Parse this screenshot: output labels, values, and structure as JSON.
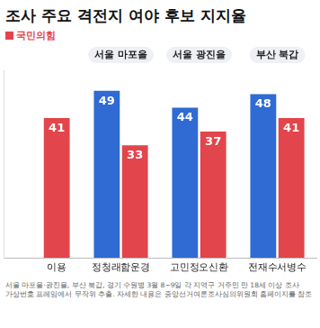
{
  "chart_data": {
    "type": "bar",
    "title": "조사 주요 격전지 여야 후보 지지율",
    "categories": [
      null,
      "서울 마포을",
      "서울 광진을",
      "부산 북갑"
    ],
    "series": [
      {
        "color": "#2f6bd3",
        "values": [
          null,
          49,
          44,
          48
        ]
      },
      {
        "name": "국민의힘",
        "color": "#e2454b",
        "values": [
          41,
          33,
          37,
          41
        ]
      }
    ],
    "candidates": [
      [
        null,
        "이용"
      ],
      [
        "정청래",
        "함운경"
      ],
      [
        "고민정",
        "오신환"
      ],
      [
        "전재수",
        "서병수"
      ]
    ],
    "ylim": [
      0,
      55
    ],
    "grid": false,
    "data_labels": true,
    "tick_labels": false,
    "notes": [
      "서울 마포을·광진을, 부산 북갑, 경기 수원병 3월 8~9일 각 지역구 거주민 만 18세 이상 조사",
      "가상번호 프레임에서 무작위 추출. 자세한 내용은 중앙선거여론조사심의위원회 홈페이지를 참조"
    ]
  }
}
